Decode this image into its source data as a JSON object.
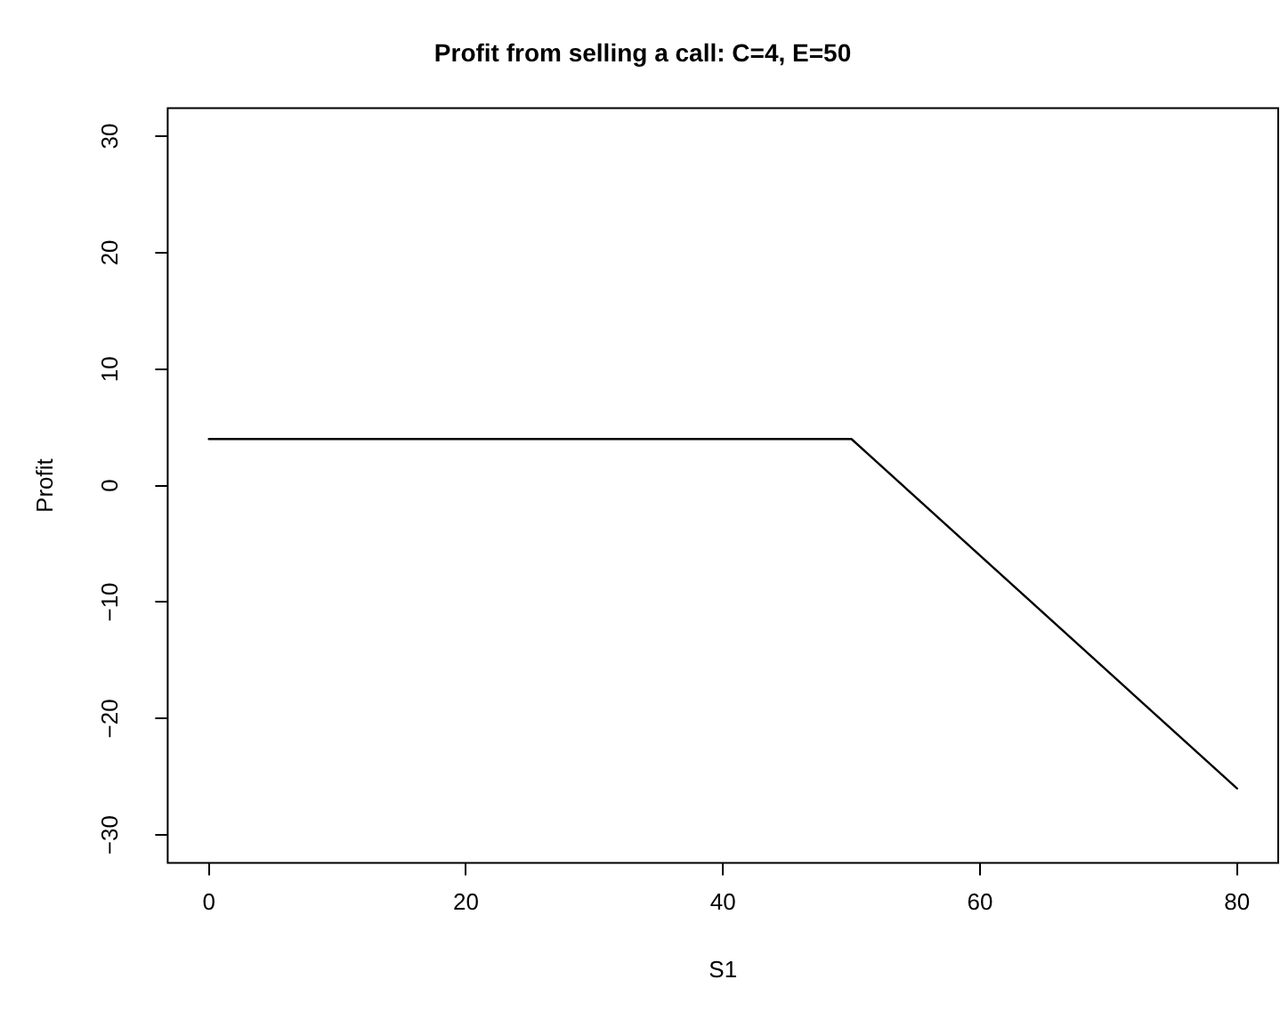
{
  "chart_data": {
    "type": "line",
    "title": "Profit from selling a call: C=4, E=50",
    "xlabel": "S1",
    "ylabel": "Profit",
    "x": [
      0,
      50,
      80
    ],
    "series": [
      {
        "color": "#000000",
        "values": [
          4,
          4,
          -26
        ]
      }
    ],
    "xlim": [
      -3.2,
      83.2
    ],
    "ylim": [
      -32.4,
      32.4
    ],
    "xticks": [
      0,
      20,
      40,
      60,
      80
    ],
    "yticks": [
      -30,
      -20,
      -10,
      0,
      10,
      20,
      30
    ],
    "grid": false,
    "legend": false,
    "marker": "none",
    "line_style": "solid"
  }
}
